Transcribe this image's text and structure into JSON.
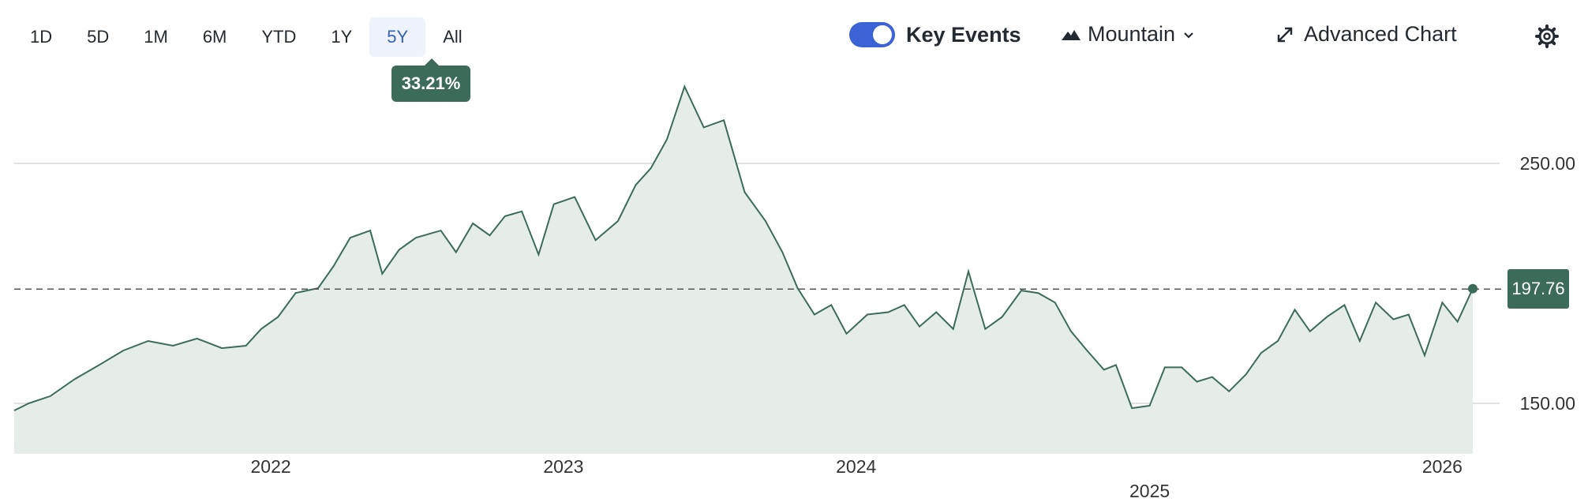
{
  "toolbar": {
    "ranges": [
      "1D",
      "5D",
      "1M",
      "6M",
      "YTD",
      "1Y",
      "5Y",
      "All"
    ],
    "active_range": "5Y",
    "tooltip": "33.21%",
    "key_events_label": "Key Events",
    "key_events_on": true,
    "chart_type_label": "Mountain",
    "advanced_label": "Advanced Chart"
  },
  "colors": {
    "line": "#3c6b5a",
    "area": "#e6ede9",
    "grid": "#d8d8d8",
    "volume": "#dcdcdc",
    "accent": "#3b63d6"
  },
  "chart_data": {
    "type": "area",
    "y_ticks": [
      150,
      250
    ],
    "y_tick_labels": [
      "150.00",
      "250.00"
    ],
    "ylim": [
      133,
      285
    ],
    "x_tick_labels": [
      "2022",
      "2023",
      "2024",
      "2025",
      "2026"
    ],
    "x_range": [
      "2021-02-15",
      "2026-02-08"
    ],
    "reference_price": 197.6,
    "last_price": "197.76",
    "grid": true,
    "series": [
      {
        "x": [
          "2021-02-15",
          "2021-03-05",
          "2021-04-01",
          "2021-05-01",
          "2021-06-01",
          "2021-07-01",
          "2021-08-01",
          "2021-09-01",
          "2021-10-01",
          "2021-11-01",
          "2021-12-01",
          "2021-12-20",
          "2022-01-10",
          "2022-02-01",
          "2022-03-01",
          "2022-03-20",
          "2022-04-10",
          "2022-05-05",
          "2022-05-20",
          "2022-06-10",
          "2022-07-01",
          "2022-08-01",
          "2022-08-20",
          "2022-09-10",
          "2022-10-01",
          "2022-10-20",
          "2022-11-10",
          "2022-12-01",
          "2022-12-20",
          "2023-01-15",
          "2023-02-10",
          "2023-03-10",
          "2023-04-01",
          "2023-04-20",
          "2023-05-10",
          "2023-06-01",
          "2023-06-25",
          "2023-07-20",
          "2023-08-15",
          "2023-09-10",
          "2023-10-01",
          "2023-10-20",
          "2023-11-10",
          "2023-12-01",
          "2023-12-20",
          "2024-01-15",
          "2024-02-10",
          "2024-03-01",
          "2024-03-20",
          "2024-04-10",
          "2024-05-01",
          "2024-05-20",
          "2024-06-10",
          "2024-07-01",
          "2024-07-25",
          "2024-08-15",
          "2024-09-05",
          "2024-09-25",
          "2024-10-15",
          "2024-11-05",
          "2024-11-20",
          "2024-12-10",
          "2025-01-01",
          "2025-01-20",
          "2025-02-10",
          "2025-03-01",
          "2025-03-20",
          "2025-04-10",
          "2025-05-01",
          "2025-05-20",
          "2025-06-10",
          "2025-07-01",
          "2025-07-20",
          "2025-08-10",
          "2025-09-01",
          "2025-09-20",
          "2025-10-10",
          "2025-11-01",
          "2025-11-20",
          "2025-12-10",
          "2026-01-01",
          "2026-01-20",
          "2026-02-08"
        ],
        "values": [
          147,
          150,
          153,
          160,
          166,
          172,
          176,
          174,
          177,
          173,
          174,
          181,
          186,
          196,
          198,
          207,
          219,
          222,
          204,
          214,
          219,
          222,
          213,
          225,
          220,
          228,
          230,
          212,
          233,
          236,
          218,
          226,
          241,
          248,
          260,
          282,
          265,
          268,
          238,
          226,
          213,
          198,
          187,
          191,
          179,
          187,
          188,
          191,
          182,
          188,
          181,
          205,
          181,
          186,
          197,
          196,
          192,
          180,
          172,
          164,
          166,
          148,
          149,
          165,
          165,
          159,
          161,
          155,
          162,
          171,
          176,
          189,
          180,
          186,
          191,
          176,
          192,
          185,
          187,
          170,
          192,
          184,
          197.8
        ]
      }
    ]
  }
}
